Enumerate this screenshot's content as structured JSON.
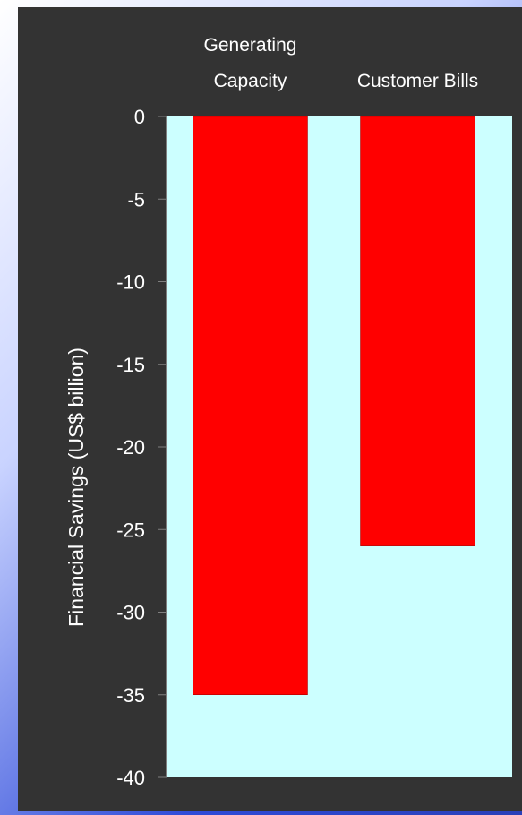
{
  "chart_data": {
    "type": "bar",
    "categories": [
      "Generating\nCapacity",
      "Customer Bills"
    ],
    "values": [
      -35,
      -26
    ],
    "ylabel": "Financial Savings (US$ billion)",
    "xlabel": "",
    "ylim": [
      -40,
      0
    ],
    "yticks": [
      0,
      -5,
      -10,
      -15,
      -20,
      -25,
      -30,
      -35,
      -40
    ],
    "reference_line": -14.5,
    "xaxis_position": "top",
    "colors": {
      "bar": "#ff0000",
      "plot_background": "#ccffff",
      "panel_background": "#333333",
      "text": "#ffffff",
      "reference_line": "#000000"
    }
  }
}
